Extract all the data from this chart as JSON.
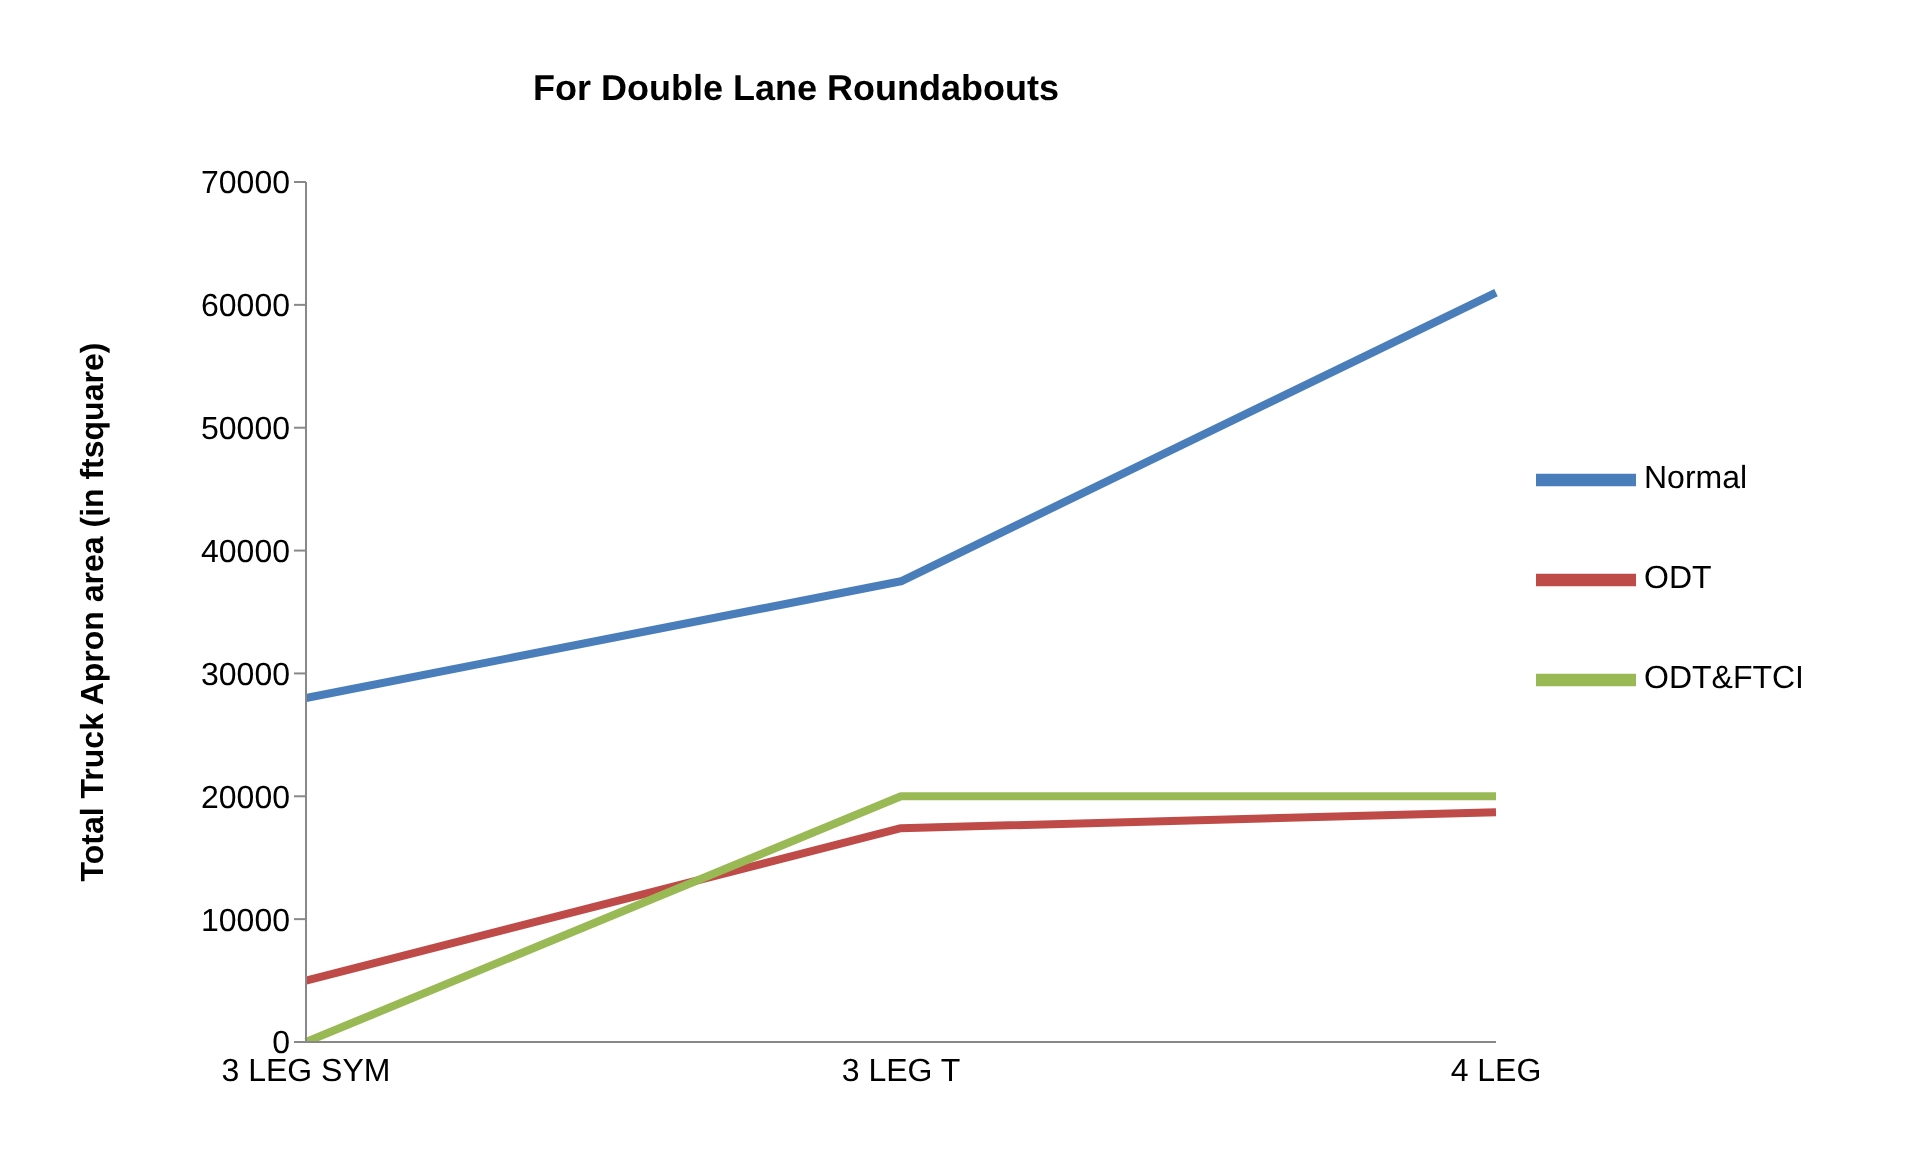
{
  "chart_data": {
    "type": "line",
    "title": "For Double Lane Roundabouts",
    "ylabel": "Total Truck Apron area (in ftsquare)",
    "categories": [
      "3 LEG  SYM",
      "3 LEG T",
      "4 LEG"
    ],
    "series": [
      {
        "name": "Normal",
        "color": "#4a7ebb",
        "values": [
          28000,
          37500,
          61000
        ]
      },
      {
        "name": "ODT",
        "color": "#be4b48",
        "values": [
          5000,
          17400,
          18700
        ]
      },
      {
        "name": "ODT&FTCI",
        "color": "#98b954",
        "values": [
          0,
          20000,
          20000
        ]
      }
    ],
    "ylim": [
      0,
      70000
    ],
    "yticks": [
      0,
      10000,
      20000,
      30000,
      40000,
      50000,
      60000,
      70000
    ],
    "grid": false,
    "legend": "right",
    "marker": "none",
    "line_style": "solid"
  }
}
